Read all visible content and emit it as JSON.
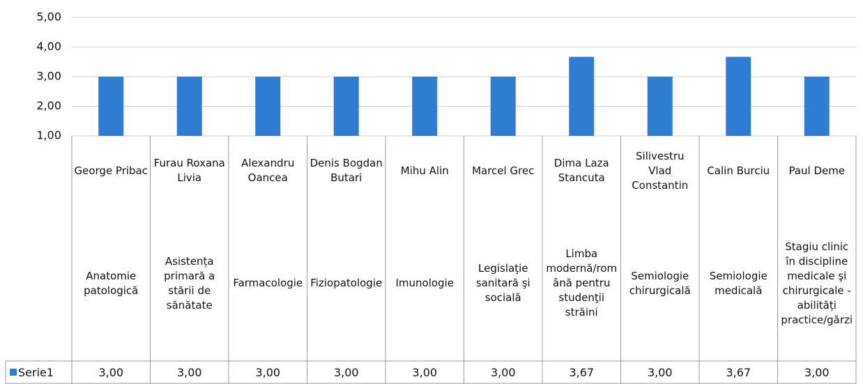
{
  "chart_data": {
    "type": "bar",
    "categories": [
      "George Pribac",
      "Furau Roxana Livia",
      "Alexandru Oancea",
      "Denis Bogdan Butari",
      "Mihu Alin",
      "Marcel Grec",
      "Dima Laza Stancuta",
      "Silivestru Vlad Constantin",
      "Calin Burciu",
      "Paul Deme"
    ],
    "subcategories": [
      "Anatomie patologică",
      "Asistența primară a stării de sănătate",
      "Farmacologie",
      "Fiziopatologie",
      "Imunologie",
      "Legislaţie sanitară şi socială",
      "Limba modernă/română pentru studenţii străini",
      "Semiologie chirurgicală",
      "Semiologie medicală",
      "Stagiu clinic în discipline medicale şi chirurgicale - abilități practice/gărzi"
    ],
    "series": [
      {
        "name": "Serie1",
        "color": "#2f7dd3",
        "values": [
          3,
          3,
          3,
          3,
          3,
          3,
          3.67,
          3,
          3.67,
          3
        ],
        "value_labels": [
          "3,00",
          "3,00",
          "3,00",
          "3,00",
          "3,00",
          "3,00",
          "3,67",
          "3,00",
          "3,67",
          "3,00"
        ]
      }
    ],
    "ylim": [
      1,
      5
    ],
    "yticks": [
      {
        "value": 1,
        "label": "1,00"
      },
      {
        "value": 2,
        "label": "2,00"
      },
      {
        "value": 3,
        "label": "3,00"
      },
      {
        "value": 4,
        "label": "4,00"
      },
      {
        "value": 5,
        "label": "5,00"
      }
    ],
    "grid": true,
    "data_table": true
  }
}
